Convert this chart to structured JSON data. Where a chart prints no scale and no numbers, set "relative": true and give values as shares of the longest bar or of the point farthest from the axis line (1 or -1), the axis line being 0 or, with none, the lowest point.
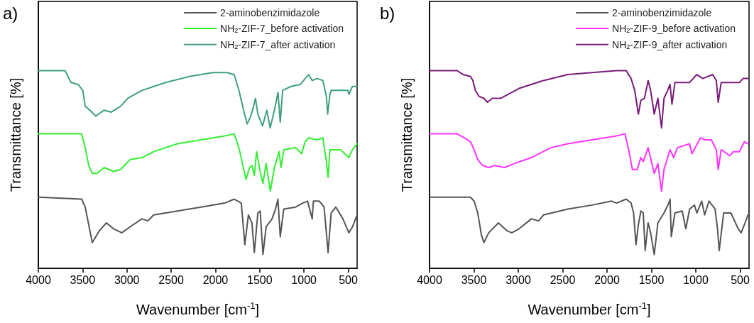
{
  "chart_data": [
    {
      "type": "line",
      "relative": true,
      "xlabel": "Wavenumber [cm$^{-1}$]",
      "ylabel": "Transmittance [%]",
      "xlim": [
        4000,
        400
      ],
      "xticks": [
        4000,
        3500,
        3000,
        2500,
        2000,
        1500,
        1000,
        500
      ],
      "tick_labels": "x",
      "grid": false,
      "legend": "top right",
      "marker": "none",
      "line_style": "solid",
      "annotations": [
        "a)"
      ],
      "series": [
        {
          "name": "2-aminobenzimidazole",
          "color": "#555555",
          "x": [
            4000,
            3511,
            3471,
            3431,
            3391,
            3364,
            3311,
            3231,
            3151,
            3057,
            2964,
            2830,
            2763,
            2697,
            2429,
            2162,
            1895,
            1788,
            1708,
            1668,
            1628,
            1588,
            1561,
            1521,
            1495,
            1463,
            1428,
            1361,
            1321,
            1294,
            1268,
            1228,
            1094,
            1014,
            960,
            907,
            894,
            827,
            773,
            728,
            693,
            640,
            560,
            493,
            453,
            400
          ],
          "values": [
            0.36,
            0.35,
            0.31,
            0.22,
            0.13,
            0.15,
            0.19,
            0.23,
            0.2,
            0.18,
            0.21,
            0.25,
            0.24,
            0.27,
            0.29,
            0.31,
            0.33,
            0.35,
            0.33,
            0.12,
            0.27,
            0.23,
            0.08,
            0.28,
            0.29,
            0.07,
            0.21,
            0.25,
            0.3,
            0.35,
            0.16,
            0.3,
            0.31,
            0.33,
            0.34,
            0.25,
            0.34,
            0.34,
            0.31,
            0.08,
            0.28,
            0.31,
            0.25,
            0.18,
            0.21,
            0.27
          ]
        },
        {
          "name": "NH$_{2}$-ZIF-7_before activation",
          "color": "#33ee33",
          "x": [
            4000,
            3511,
            3471,
            3431,
            3391,
            3338,
            3257,
            3151,
            3070,
            2964,
            2830,
            2697,
            2429,
            2162,
            1895,
            1788,
            1735,
            1695,
            1655,
            1615,
            1588,
            1561,
            1535,
            1495,
            1463,
            1428,
            1380,
            1334,
            1281,
            1260,
            1228,
            1094,
            1027,
            987,
            947,
            853,
            787,
            747,
            728,
            707,
            640,
            587,
            493,
            453,
            400
          ],
          "values": [
            0.68,
            0.68,
            0.61,
            0.52,
            0.48,
            0.48,
            0.51,
            0.49,
            0.5,
            0.55,
            0.56,
            0.59,
            0.63,
            0.65,
            0.67,
            0.68,
            0.61,
            0.53,
            0.45,
            0.51,
            0.52,
            0.47,
            0.59,
            0.49,
            0.43,
            0.53,
            0.39,
            0.51,
            0.59,
            0.51,
            0.6,
            0.61,
            0.58,
            0.64,
            0.66,
            0.65,
            0.66,
            0.54,
            0.46,
            0.6,
            0.6,
            0.6,
            0.56,
            0.6,
            0.63
          ]
        },
        {
          "name": "NH$_{2}$-ZIF-7_after activation",
          "color": "#3fa07a",
          "x": [
            4000,
            3698,
            3631,
            3551,
            3498,
            3471,
            3418,
            3351,
            3257,
            3177,
            3070,
            2990,
            2830,
            2563,
            2296,
            2029,
            1869,
            1788,
            1735,
            1682,
            1641,
            1601,
            1575,
            1548,
            1521,
            1468,
            1420,
            1382,
            1334,
            1294,
            1268,
            1241,
            1147,
            1041,
            987,
            947,
            907,
            853,
            787,
            747,
            733,
            707,
            693,
            587,
            506,
            493,
            453,
            400
          ],
          "values": [
            1.0,
            1.0,
            0.94,
            0.93,
            0.9,
            0.82,
            0.8,
            0.77,
            0.8,
            0.79,
            0.82,
            0.86,
            0.9,
            0.94,
            0.97,
            0.99,
            0.99,
            0.98,
            0.9,
            0.8,
            0.73,
            0.77,
            0.81,
            0.86,
            0.78,
            0.72,
            0.8,
            0.71,
            0.8,
            0.89,
            0.74,
            0.9,
            0.92,
            0.93,
            0.96,
            0.98,
            0.95,
            0.96,
            0.95,
            0.87,
            0.78,
            0.88,
            0.9,
            0.9,
            0.9,
            0.88,
            0.92,
            0.92
          ]
        }
      ]
    },
    {
      "type": "line",
      "relative": true,
      "xlabel": "Wavenumber [cm$^{-1}$]",
      "ylabel": "Transmittance [%]",
      "xlim": [
        4000,
        400
      ],
      "xticks": [
        4000,
        3500,
        3000,
        2500,
        2000,
        1500,
        1000,
        500
      ],
      "tick_labels": "x",
      "grid": false,
      "legend": "top right",
      "marker": "none",
      "line_style": "solid",
      "annotations": [
        "b)"
      ],
      "series": [
        {
          "name": "2-aminobenzimidazole",
          "color": "#555555",
          "x": [
            4000,
            3539,
            3498,
            3457,
            3416,
            3388,
            3333,
            3224,
            3128,
            3073,
            2991,
            2853,
            2771,
            2716,
            2442,
            2168,
            1948,
            1893,
            1784,
            1729,
            1701,
            1674,
            1647,
            1619,
            1592,
            1570,
            1537,
            1509,
            1468,
            1427,
            1358,
            1304,
            1290,
            1276,
            1235,
            1153,
            1112,
            1070,
            1015,
            988,
            933,
            900,
            851,
            783,
            755,
            736,
            686,
            604,
            522,
            489,
            453,
            412
          ],
          "values": [
            0.36,
            0.36,
            0.34,
            0.28,
            0.17,
            0.13,
            0.18,
            0.23,
            0.19,
            0.18,
            0.2,
            0.25,
            0.24,
            0.27,
            0.3,
            0.32,
            0.34,
            0.33,
            0.35,
            0.33,
            0.28,
            0.12,
            0.22,
            0.29,
            0.28,
            0.09,
            0.23,
            0.18,
            0.07,
            0.23,
            0.28,
            0.33,
            0.35,
            0.16,
            0.28,
            0.29,
            0.2,
            0.3,
            0.32,
            0.28,
            0.34,
            0.27,
            0.34,
            0.3,
            0.2,
            0.09,
            0.28,
            0.28,
            0.2,
            0.18,
            0.22,
            0.27
          ]
        },
        {
          "name": "NH$_{2}$-ZIF-9_before activation",
          "color": "#ff33ff",
          "x": [
            4000,
            3690,
            3608,
            3539,
            3498,
            3457,
            3402,
            3333,
            3265,
            3155,
            3045,
            2853,
            2634,
            2442,
            2168,
            1893,
            1797,
            1756,
            1715,
            1660,
            1619,
            1592,
            1537,
            1468,
            1427,
            1386,
            1358,
            1290,
            1249,
            1208,
            1070,
            1043,
            947,
            892,
            824,
            769,
            747,
            714,
            618,
            577,
            508,
            453,
            412
          ],
          "values": [
            0.68,
            0.68,
            0.66,
            0.64,
            0.6,
            0.55,
            0.52,
            0.51,
            0.52,
            0.51,
            0.53,
            0.56,
            0.61,
            0.63,
            0.65,
            0.67,
            0.68,
            0.6,
            0.5,
            0.5,
            0.56,
            0.54,
            0.61,
            0.48,
            0.53,
            0.39,
            0.5,
            0.6,
            0.56,
            0.61,
            0.63,
            0.58,
            0.66,
            0.65,
            0.65,
            0.6,
            0.5,
            0.6,
            0.57,
            0.59,
            0.59,
            0.64,
            0.63
          ]
        },
        {
          "name": "NH$_{2}$-ZIF-9_after activation",
          "color": "#7a1a7a",
          "x": [
            4000,
            3690,
            3621,
            3539,
            3512,
            3484,
            3443,
            3388,
            3347,
            3292,
            3196,
            3073,
            2991,
            2716,
            2442,
            2168,
            1893,
            1784,
            1729,
            1688,
            1647,
            1619,
            1578,
            1537,
            1509,
            1468,
            1427,
            1386,
            1358,
            1317,
            1290,
            1268,
            1235,
            1070,
            988,
            920,
            810,
            769,
            747,
            714,
            604,
            508,
            467,
            412
          ],
          "values": [
            1.0,
            1.0,
            0.98,
            0.97,
            0.95,
            0.9,
            0.87,
            0.86,
            0.84,
            0.86,
            0.86,
            0.89,
            0.91,
            0.95,
            0.98,
            0.99,
            1.0,
            1.0,
            0.96,
            0.9,
            0.78,
            0.85,
            0.86,
            0.95,
            0.9,
            0.78,
            0.86,
            0.71,
            0.86,
            0.9,
            0.93,
            0.83,
            0.94,
            0.94,
            0.98,
            0.96,
            0.98,
            0.95,
            0.84,
            0.94,
            0.94,
            0.94,
            0.96,
            0.96
          ]
        }
      ]
    }
  ]
}
